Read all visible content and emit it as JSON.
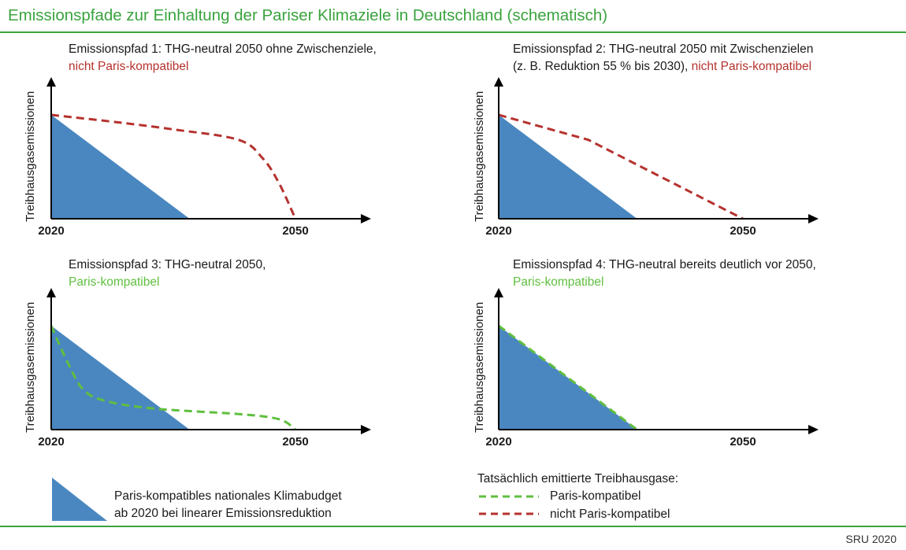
{
  "title": "Emissionspfade zur Einhaltung der Pariser Klimaziele in Deutschland (schematisch)",
  "colors": {
    "budget": "#4a87c0",
    "green": "#5fbf3f",
    "red": "#b5322e",
    "title": "#3aa33e"
  },
  "chart_data": [
    {
      "type": "area",
      "title": "Emissionspfad 1: THG-neutral 2050 ohne Zwischenziele,",
      "status": "nicht Paris-kompatibel",
      "ylabel": "Treibhausgasemissionen",
      "xticks": [
        "2020",
        "2050"
      ],
      "budget": {
        "x": [
          2020,
          2037
        ],
        "y": [
          1,
          0
        ]
      },
      "series": [
        {
          "name": "nicht Paris-kompatibel",
          "style": "dashed",
          "color": "red",
          "x": [
            2020,
            2028,
            2035,
            2043,
            2046,
            2048,
            2050
          ],
          "y": [
            1,
            0.93,
            0.86,
            0.76,
            0.58,
            0.34,
            0
          ]
        }
      ]
    },
    {
      "type": "area",
      "title": "Emissionspfad 2: THG-neutral 2050 mit Zwischenzielen",
      "title2": "(z. B. Reduktion 55 % bis 2030),",
      "status": "nicht Paris-kompatibel",
      "ylabel": "Treibhausgasemissionen",
      "xticks": [
        "2020",
        "2050"
      ],
      "budget": {
        "x": [
          2020,
          2037
        ],
        "y": [
          1,
          0
        ]
      },
      "series": [
        {
          "name": "nicht Paris-kompatibel",
          "style": "dashed",
          "color": "red",
          "x": [
            2020,
            2031,
            2050
          ],
          "y": [
            1,
            0.76,
            0
          ]
        }
      ]
    },
    {
      "type": "area",
      "title": "Emissionspfad 3: THG-neutral 2050,",
      "status": "Paris-kompatibel",
      "ylabel": "Treibhausgasemissionen",
      "xticks": [
        "2020",
        "2050"
      ],
      "budget": {
        "x": [
          2020,
          2037
        ],
        "y": [
          1,
          0
        ]
      },
      "series": [
        {
          "name": "Paris-kompatibel",
          "style": "dashed",
          "color": "green",
          "x": [
            2020,
            2022,
            2024,
            2027,
            2033,
            2043,
            2048,
            2050
          ],
          "y": [
            1,
            0.65,
            0.38,
            0.27,
            0.2,
            0.15,
            0.1,
            0
          ]
        }
      ]
    },
    {
      "type": "area",
      "title": "Emissionspfad 4: THG-neutral bereits deutlich vor 2050,",
      "status": "Paris-kompatibel",
      "ylabel": "Treibhausgasemissionen",
      "xticks": [
        "2020",
        "2050"
      ],
      "budget": {
        "x": [
          2020,
          2037
        ],
        "y": [
          1,
          0
        ]
      },
      "series": [
        {
          "name": "Paris-kompatibel",
          "style": "dashed",
          "color": "green",
          "x": [
            2020,
            2037
          ],
          "y": [
            1,
            0
          ]
        }
      ]
    }
  ],
  "legend": {
    "budget_line1": "Paris-kompatibles nationales Klimabudget",
    "budget_line2": "ab 2020 bei linearer Emissionsreduktion",
    "heading": "Tatsächlich emittierte Treibhausgase:",
    "green_label": "Paris-kompatibel",
    "red_label": "nicht Paris-kompatibel"
  },
  "credit": "SRU 2020"
}
